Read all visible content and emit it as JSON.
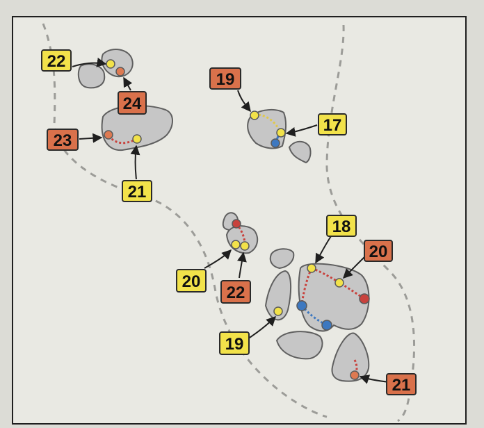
{
  "map": {
    "colors": {
      "paper": "#e9e9e3",
      "border": "#1f1f1f",
      "rock_fill": "#c6c6c6",
      "rock_stroke": "#5f5f5f",
      "trail": "#9c9c98",
      "yellow_label": "#f2e24a",
      "orange_label": "#d9714b",
      "label_border": "#2a2a2a",
      "red_route": "#c8423d",
      "blue_route": "#3d78c0",
      "yellow_dot": "#f2e24a",
      "orange_dot": "#dd7a52"
    },
    "labels": [
      {
        "id": "l22a",
        "text": "22",
        "color": "yellow"
      },
      {
        "id": "l24",
        "text": "24",
        "color": "orange"
      },
      {
        "id": "l23",
        "text": "23",
        "color": "orange"
      },
      {
        "id": "l21a",
        "text": "21",
        "color": "yellow"
      },
      {
        "id": "l19a",
        "text": "19",
        "color": "orange"
      },
      {
        "id": "l17",
        "text": "17",
        "color": "yellow"
      },
      {
        "id": "l18",
        "text": "18",
        "color": "yellow"
      },
      {
        "id": "l20a",
        "text": "20",
        "color": "orange"
      },
      {
        "id": "l20b",
        "text": "20",
        "color": "yellow"
      },
      {
        "id": "l22b",
        "text": "22",
        "color": "orange"
      },
      {
        "id": "l19b",
        "text": "19",
        "color": "yellow"
      },
      {
        "id": "l21b",
        "text": "21",
        "color": "orange"
      }
    ]
  }
}
